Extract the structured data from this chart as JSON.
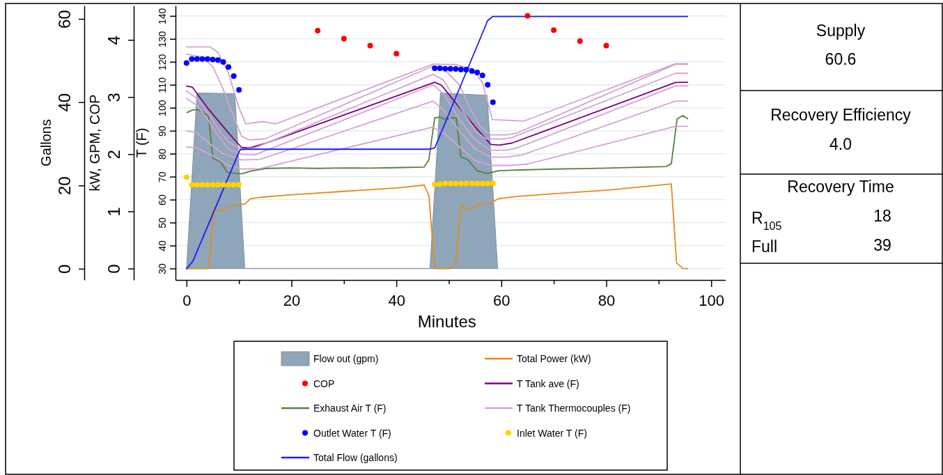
{
  "chart_data": [
    {
      "type": "line",
      "xlabel": "Minutes",
      "ylabel": "T (F)",
      "y2label": "kW, GPM, COP",
      "y3label": "Gallons",
      "xlim": [
        -2.1,
        102.7
      ],
      "xticks": [
        0,
        {
          "value": 10,
          "label": null
        },
        20,
        {
          "value": 30,
          "label": null
        },
        40,
        {
          "value": 50,
          "label": null
        },
        60,
        {
          "value": 70,
          "label": null
        },
        80,
        {
          "value": 90,
          "label": null
        },
        100
      ],
      "ylim": [
        25,
        144.5
      ],
      "yticks": [
        30,
        40,
        50,
        60,
        70,
        80,
        90,
        100,
        110,
        120,
        130,
        140
      ],
      "y2lim": [
        -0.2,
        4.6
      ],
      "y2ticks": [
        0,
        1,
        2,
        3,
        4
      ],
      "y3lim": [
        -2.7,
        63.2
      ],
      "y3ticks": [
        0,
        20,
        40,
        60
      ],
      "grid": "y",
      "legend": "bottom",
      "series": [
        {
          "name": "Flow out (gpm)",
          "type": "area",
          "axis": "y2",
          "color": "#8fa5ba",
          "x": [
            0,
            2,
            9.2,
            11.1,
            46.4,
            48.4,
            57.3,
            59.3
          ],
          "values": [
            0,
            3.07,
            3.06,
            0,
            0,
            3.07,
            3.03,
            0
          ]
        },
        {
          "name": "Total Power (kW)",
          "type": "line",
          "axis": "y2",
          "color": "#e8891a",
          "x": [
            0,
            4.2,
            5.2,
            6,
            9.1,
            11.1,
            12.2,
            14.5,
            20,
            30,
            40,
            45.3,
            46.2,
            47.3,
            50.3,
            51.3,
            52.3,
            53.3,
            55.9,
            58,
            59.4,
            62.8,
            70,
            80,
            92.4,
            93.4,
            94.6,
            95.5
          ],
          "values": [
            0,
            0,
            1.07,
            1.0,
            1.11,
            1.13,
            1.22,
            1.25,
            1.29,
            1.35,
            1.41,
            1.46,
            1.28,
            0,
            0,
            0.1,
            1.11,
            1.03,
            1.13,
            1.15,
            1.22,
            1.26,
            1.31,
            1.37,
            1.48,
            0.1,
            0,
            0
          ]
        },
        {
          "name": "COP",
          "type": "scatter",
          "axis": "y2",
          "marker": "circle",
          "color": "#ff0000",
          "x": [
            25,
            30,
            35,
            40,
            65,
            70,
            75,
            80
          ],
          "values": [
            4.16,
            4.02,
            3.9,
            3.76,
            4.42,
            4.17,
            3.98,
            3.9
          ]
        },
        {
          "name": "T Tank ave (F)",
          "type": "line",
          "color": "#800080",
          "x": [
            0,
            1.1,
            4.2,
            8.2,
            10.5,
            12,
            15,
            47.3,
            48.6,
            55.4,
            58,
            59.6,
            62,
            93.2,
            95.5
          ],
          "values": [
            109.4,
            109,
            99.4,
            88.5,
            82.7,
            82.5,
            84.5,
            111.1,
            109.8,
            90.6,
            84,
            83.7,
            84.6,
            111,
            111.1
          ]
        },
        {
          "name": "Exhaust Air T (F)",
          "type": "line",
          "color": "#5a7f3a",
          "x": [
            0.1,
            1.2,
            2.3,
            4.2,
            5,
            6.5,
            7.8,
            10.5,
            12.2,
            15.3,
            20,
            25,
            30,
            35,
            40,
            45.3,
            46.2,
            47.3,
            48.3,
            49.6,
            50.2,
            51.4,
            52.3,
            53.6,
            55.4,
            57.3,
            59.4,
            62,
            65,
            70,
            75,
            80,
            85,
            91.4,
            92.4,
            93.5,
            94.6,
            95.5
          ],
          "values": [
            97.9,
            99.1,
            99.1,
            96.4,
            78.2,
            76.4,
            71.8,
            71.2,
            72.4,
            73.6,
            73.8,
            73.6,
            73.8,
            73.7,
            73.9,
            74.2,
            77.4,
            95.6,
            95.9,
            94.8,
            95.6,
            95.6,
            78.6,
            77.4,
            72.6,
            71.4,
            72.6,
            72.8,
            73,
            73.3,
            73.5,
            73.7,
            74,
            74.4,
            75.6,
            95.2,
            96.6,
            95.2
          ]
        },
        {
          "name": "T Tank Thermocouples (F)",
          "type": "line",
          "color": "#d4a3d4",
          "x": [
            0,
            4.5,
            6,
            8,
            10,
            11.3,
            14.5,
            17,
            47,
            51.2,
            54.4,
            56.4,
            58.3,
            61.8,
            64.3,
            93.2,
            95.5
          ],
          "values": [
            126.5,
            126.5,
            124,
            115,
            100,
            93,
            94,
            93,
            119,
            118.8,
            117,
            111,
            94.8,
            94.5,
            94.2,
            119.2,
            119.2
          ]
        },
        {
          "type": "line",
          "color": "#d4a3d4",
          "x": [
            0,
            3,
            5,
            7,
            9,
            10.5,
            12,
            15,
            47,
            49,
            52,
            54,
            56,
            58,
            61,
            63,
            93.2,
            95.5
          ],
          "values": [
            123.4,
            122,
            118,
            108,
            96,
            87.5,
            86,
            86.5,
            118.2,
            117,
            110,
            100,
            92,
            88.2,
            88.2,
            89,
            118.9,
            118.9
          ]
        },
        {
          "type": "line",
          "color": "#d4a3d4",
          "x": [
            0,
            2,
            4,
            6,
            8,
            10.5,
            13,
            47,
            49,
            52,
            55,
            57,
            60,
            62,
            93.2,
            95.5
          ],
          "values": [
            107.3,
            104,
            98,
            91,
            85,
            82,
            82.5,
            114.6,
            112,
            101,
            90,
            86.5,
            86.3,
            87,
            115,
            115
          ]
        },
        {
          "type": "line",
          "color": "#d4a3d4",
          "x": [
            0,
            2,
            4,
            6,
            8,
            10.5,
            13,
            47,
            49,
            52,
            55,
            58,
            61,
            63,
            93.2,
            95.5
          ],
          "values": [
            104,
            101,
            95,
            88,
            82,
            79.7,
            79.5,
            110,
            106,
            95,
            86,
            81.5,
            81.5,
            82.5,
            109.5,
            109.5
          ]
        },
        {
          "type": "line",
          "color": "#d4a3d4",
          "x": [
            0,
            2,
            4,
            7,
            10.5,
            14,
            47,
            49,
            52,
            55,
            58,
            61,
            64,
            93.2,
            95.5
          ],
          "values": [
            90,
            89,
            85,
            80,
            77.3,
            77.5,
            102.9,
            99,
            90,
            82,
            78.5,
            78.5,
            79.5,
            102.9,
            102.9
          ]
        },
        {
          "type": "line",
          "color": "#d4a3d4",
          "x": [
            0,
            2,
            5,
            8,
            10.5,
            14,
            47,
            49,
            52,
            55,
            58,
            62,
            65,
            93.2,
            95.5
          ],
          "values": [
            83,
            82.5,
            79,
            75,
            73.3,
            73.5,
            91.6,
            89,
            83,
            77,
            74.9,
            74.9,
            75.5,
            91.9,
            91.9
          ]
        },
        {
          "name": "Outlet Water T (F)",
          "type": "scatter",
          "marker": "circle",
          "color": "#0000ff",
          "x": [
            0,
            1,
            2,
            3,
            4,
            5,
            6,
            7,
            8,
            9,
            10,
            47.3,
            48.3,
            49.3,
            50.3,
            51.3,
            52.3,
            53.3,
            54.4,
            55.4,
            56.4,
            57.4,
            58.4
          ],
          "values": [
            119.5,
            121.2,
            121.2,
            121.2,
            121.2,
            121,
            120.8,
            119.9,
            117.7,
            113.8,
            107.8,
            117.2,
            117.2,
            117,
            117,
            116.9,
            116.7,
            116.6,
            116,
            115.4,
            114.1,
            110,
            102.4
          ]
        },
        {
          "name": "Inlet Water T (F)",
          "type": "scatter",
          "marker": "circle",
          "color": "#ffd200",
          "x": [
            0,
            1,
            2,
            3,
            4,
            5,
            6,
            7,
            8,
            9,
            10,
            47.3,
            48.3,
            49.3,
            50.3,
            51.3,
            52.3,
            53.3,
            54.4,
            55.4,
            56.4,
            57.4,
            58.4
          ],
          "values": [
            69.7,
            66.5,
            66.5,
            66.5,
            66.5,
            66.5,
            66.5,
            66.5,
            66.5,
            66.5,
            66.5,
            66.6,
            66.7,
            67,
            67,
            67,
            67,
            67,
            67,
            67,
            67,
            67,
            67.1
          ]
        },
        {
          "name": "Total Flow (gallons)",
          "type": "line",
          "axis": "y3",
          "color": "#1a1aff",
          "x": [
            0,
            1.2,
            10.2,
            11.3,
            46.2,
            47.3,
            57.4,
            58.4,
            95.5
          ],
          "values": [
            0,
            1.8,
            28.6,
            28.7,
            28.7,
            29,
            59.6,
            60.6,
            60.6
          ]
        }
      ]
    },
    {
      "type": "other",
      "annotations": [
        "Supply",
        "60.6",
        "Recovery Efficiency",
        "4.0",
        "Recovery Time",
        "R$_{105}$",
        "18",
        "Full",
        "39"
      ]
    }
  ]
}
